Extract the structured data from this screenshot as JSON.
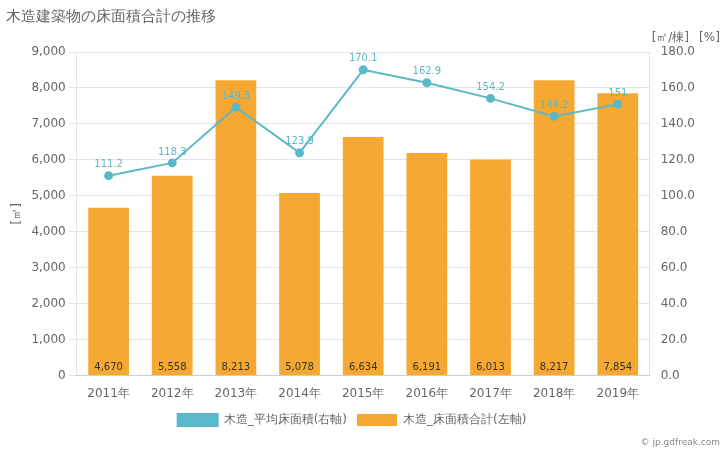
{
  "chart_data": {
    "type": "bar",
    "title": "木造建築物の床面積合計の推移",
    "categories": [
      "2011年",
      "2012年",
      "2013年",
      "2014年",
      "2015年",
      "2016年",
      "2017年",
      "2018年",
      "2019年"
    ],
    "series": [
      {
        "name": "木造_床面積合計(左軸)",
        "type": "bar",
        "color": "#F5A832",
        "values": [
          4670,
          5558,
          8213,
          5078,
          6634,
          6191,
          6013,
          8217,
          7854
        ],
        "value_labels": [
          "4,670",
          "5,558",
          "8,213",
          "5,078",
          "6,634",
          "6,191",
          "6,013",
          "8,217",
          "7,854"
        ]
      },
      {
        "name": "木造_平均床面積(右軸)",
        "type": "line",
        "color": "#5BB8C8",
        "marker": "circle",
        "axis": "y2",
        "values": [
          111.2,
          118.3,
          149.3,
          123.9,
          170.1,
          162.9,
          154.2,
          144.2,
          151
        ]
      }
    ],
    "ylabel": "[㎡]",
    "y2label": [
      "[㎡/棟]",
      "[%]"
    ],
    "ylim": [
      0,
      9000
    ],
    "yticks": [
      0,
      {
        "value": 1000,
        "label": "1,000"
      },
      {
        "value": 2000,
        "label": "2,000"
      },
      {
        "value": 3000,
        "label": "3,000"
      },
      {
        "value": 4000,
        "label": "4,000"
      },
      {
        "value": 5000,
        "label": "5,000"
      },
      {
        "value": 6000,
        "label": "6,000"
      },
      {
        "value": 7000,
        "label": "7,000"
      },
      {
        "value": 8000,
        "label": "8,000"
      },
      {
        "value": 9000,
        "label": "9,000"
      }
    ],
    "y2lim": [
      0,
      180
    ],
    "y2ticks": [
      {
        "value": 0,
        "label": "0.0"
      },
      {
        "value": 20,
        "label": "20.0"
      },
      {
        "value": 40,
        "label": "40.0"
      },
      {
        "value": 60,
        "label": "60.0"
      },
      {
        "value": 80,
        "label": "80.0"
      },
      {
        "value": 100,
        "label": "100.0"
      },
      {
        "value": 120,
        "label": "120.0"
      },
      {
        "value": 140,
        "label": "140.0"
      },
      {
        "value": 160,
        "label": "160.0"
      },
      {
        "value": 180,
        "label": "180.0"
      }
    ],
    "grid": true,
    "legend": "bottom",
    "data_labels": true,
    "annotations": [
      "© jp.gdfreak.com"
    ]
  }
}
